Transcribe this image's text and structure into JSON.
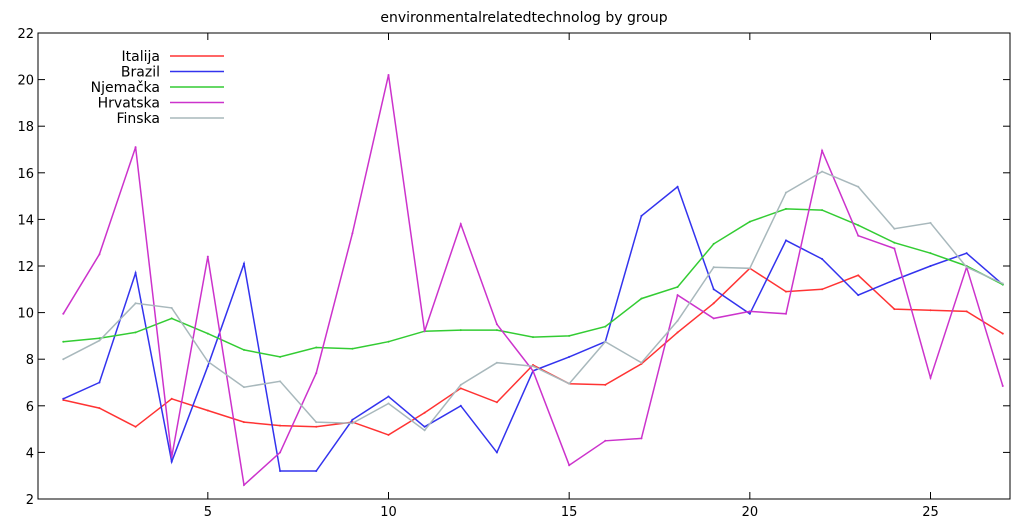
{
  "chart_data": {
    "type": "line",
    "title": "environmentalrelatedtechnolog by group",
    "xlabel": "",
    "ylabel": "",
    "xlim": [
      0.3,
      27.2
    ],
    "ylim": [
      2,
      22
    ],
    "x_ticks": [
      5,
      10,
      15,
      20,
      25
    ],
    "y_ticks": [
      2,
      4,
      6,
      8,
      10,
      12,
      14,
      16,
      18,
      20,
      22
    ],
    "grid": false,
    "legend_position": "top-left",
    "x": [
      1,
      2,
      3,
      4,
      5,
      6,
      7,
      8,
      9,
      10,
      11,
      12,
      13,
      14,
      15,
      16,
      17,
      18,
      19,
      20,
      21,
      22,
      23,
      24,
      25,
      26,
      27
    ],
    "series": [
      {
        "name": "Italija",
        "color": "#ff3333",
        "values": [
          6.25,
          5.9,
          5.1,
          6.3,
          5.8,
          5.3,
          5.15,
          5.1,
          5.3,
          4.75,
          5.7,
          6.75,
          6.15,
          7.75,
          6.95,
          6.9,
          7.8,
          9.15,
          10.4,
          11.9,
          10.9,
          11.0,
          11.6,
          10.15,
          10.1,
          10.05,
          9.1
        ]
      },
      {
        "name": "Brazil",
        "color": "#3333ee",
        "values": [
          6.3,
          7.0,
          11.7,
          3.6,
          7.7,
          12.1,
          3.2,
          3.2,
          5.4,
          6.4,
          5.1,
          6.0,
          4.0,
          7.5,
          8.1,
          8.75,
          14.15,
          15.4,
          11.0,
          9.95,
          13.1,
          12.3,
          10.75,
          11.4,
          12.0,
          12.55,
          11.2
        ]
      },
      {
        "name": "Njemačka",
        "color": "#33cc33",
        "values": [
          8.75,
          8.9,
          9.15,
          9.75,
          9.1,
          8.4,
          8.1,
          8.5,
          8.45,
          8.75,
          9.2,
          9.25,
          9.25,
          8.95,
          9.0,
          9.4,
          10.6,
          11.1,
          12.95,
          13.9,
          14.45,
          14.4,
          13.75,
          13.0,
          12.55,
          12.0,
          11.2
        ]
      },
      {
        "name": "Hrvatska",
        "color": "#cc33cc",
        "values": [
          9.95,
          12.5,
          17.1,
          3.8,
          12.4,
          2.6,
          4.0,
          7.4,
          13.4,
          20.2,
          9.2,
          13.8,
          9.5,
          7.5,
          3.45,
          4.5,
          4.6,
          10.75,
          9.75,
          10.05,
          9.95,
          16.95,
          13.3,
          12.75,
          7.2,
          11.95,
          6.85
        ]
      },
      {
        "name": "Finska",
        "color": "#a8b8bc",
        "values": [
          8.0,
          8.8,
          10.4,
          10.2,
          7.9,
          6.8,
          7.05,
          5.3,
          5.25,
          6.1,
          4.95,
          6.9,
          7.85,
          7.7,
          6.95,
          8.75,
          7.85,
          9.65,
          11.95,
          11.9,
          15.15,
          16.05,
          15.4,
          13.6,
          13.85,
          11.95,
          11.25
        ]
      }
    ]
  }
}
